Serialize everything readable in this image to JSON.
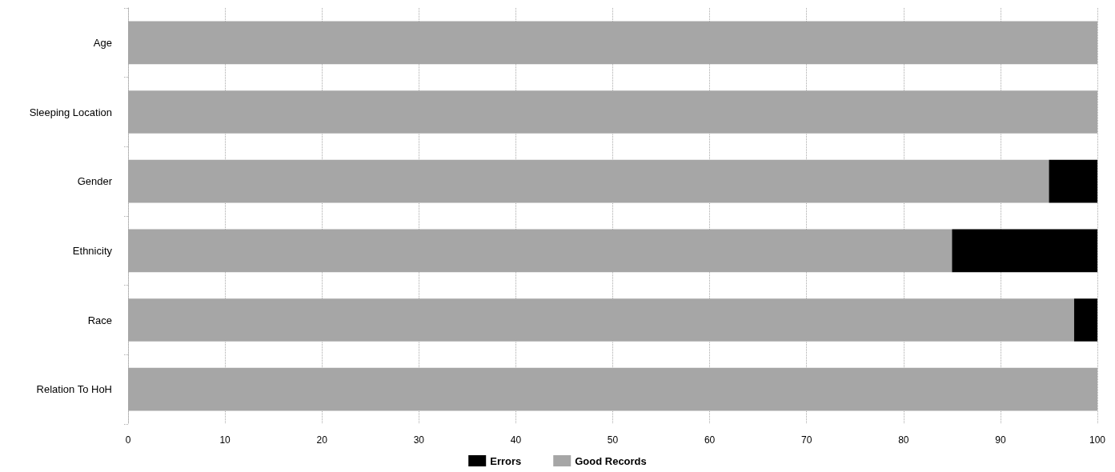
{
  "chart_data": {
    "type": "bar",
    "orientation": "horizontal",
    "stacked": true,
    "categories": [
      "Age",
      "Sleeping Location",
      "Gender",
      "Ethnicity",
      "Race",
      "Relation To HoH"
    ],
    "series": [
      {
        "name": "Good Records",
        "color": "#a6a6a6",
        "values": [
          100,
          100,
          95,
          85,
          97.6,
          100
        ]
      },
      {
        "name": "Errors",
        "color": "#000000",
        "values": [
          0,
          0,
          5,
          15,
          2.4,
          0
        ]
      }
    ],
    "xlim": [
      0,
      100
    ],
    "xticks": [
      0,
      10,
      20,
      30,
      40,
      50,
      60,
      70,
      80,
      90,
      100
    ],
    "grid": "x",
    "legend": "bottom"
  }
}
